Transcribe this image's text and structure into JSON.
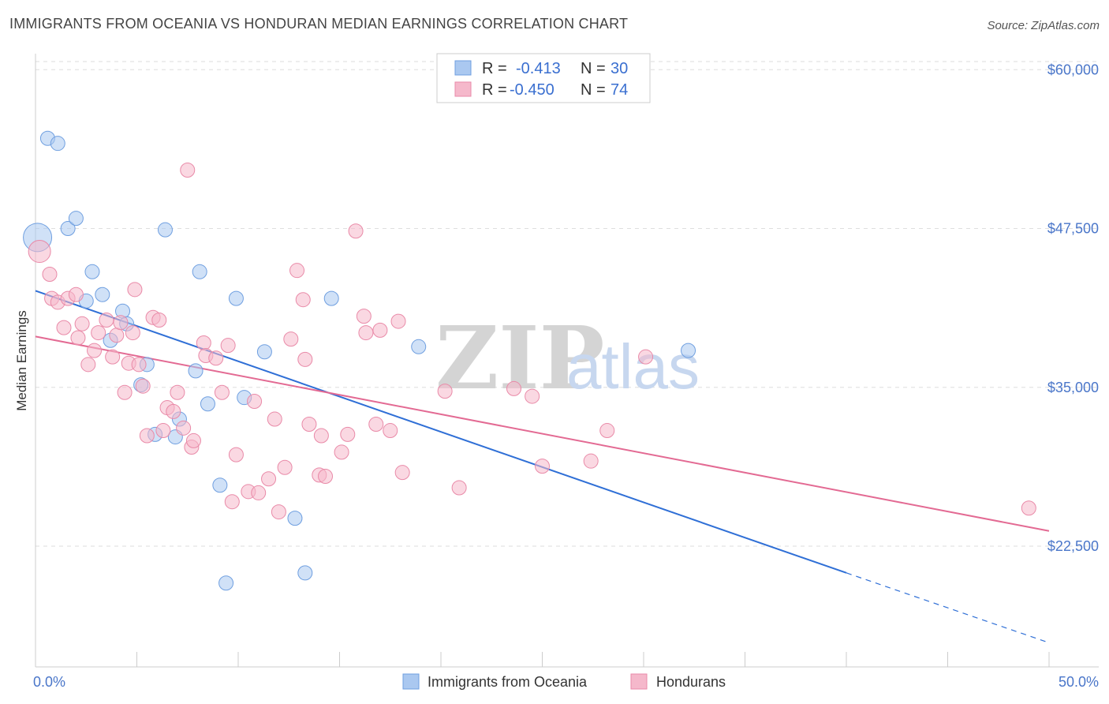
{
  "title": "IMMIGRANTS FROM OCEANIA VS HONDURAN MEDIAN EARNINGS CORRELATION CHART",
  "source": "Source: ZipAtlas.com",
  "watermark": {
    "zip": "ZIP",
    "atlas": "atlas"
  },
  "legend": {
    "rows": [
      {
        "r_label": "R =",
        "r_value": "-0.413",
        "n_label": "N =",
        "n_value": "30",
        "color": "#aac8f0"
      },
      {
        "r_label": "R =",
        "r_value": "-0.450",
        "n_label": "N =",
        "n_value": "74",
        "color": "#f5b8cb"
      }
    ]
  },
  "bottom_legend": [
    {
      "label": "Immigrants from Oceania",
      "color": "#aac8f0"
    },
    {
      "label": "Hondurans",
      "color": "#f5b8cb"
    }
  ],
  "chart_data": {
    "type": "scatter",
    "ylabel": "Median Earnings",
    "xlim": [
      0,
      50
    ],
    "ylim": [
      13000,
      63000
    ],
    "x_tick_labels": [
      {
        "x": 0,
        "label": "0.0%"
      },
      {
        "x": 50,
        "label": "50.0%"
      }
    ],
    "y_ticks": [
      {
        "y": 22500,
        "label": "$22,500"
      },
      {
        "y": 35000,
        "label": "$35,000"
      },
      {
        "y": 47500,
        "label": "$47,500"
      },
      {
        "y": 60000,
        "label": "$60,000"
      }
    ],
    "grid": true,
    "series": [
      {
        "name": "Immigrants from Oceania",
        "color": "#aac8f0",
        "stroke": "#6f9fe0",
        "line_color": "#2f6fd6",
        "trend": {
          "x0": 0,
          "y0": 42600,
          "x1": 40,
          "y1": 20400,
          "dash_to_x": 50,
          "dash_to_y": 14900
        },
        "points": [
          [
            0.1,
            46800
          ],
          [
            0.6,
            54600
          ],
          [
            1.1,
            54200
          ],
          [
            1.6,
            47500
          ],
          [
            2.0,
            48300
          ],
          [
            2.8,
            44100
          ],
          [
            2.5,
            41800
          ],
          [
            3.3,
            42300
          ],
          [
            3.7,
            38700
          ],
          [
            4.3,
            41000
          ],
          [
            4.5,
            40000
          ],
          [
            5.2,
            35200
          ],
          [
            5.5,
            36800
          ],
          [
            5.9,
            31300
          ],
          [
            6.4,
            47400
          ],
          [
            6.9,
            31100
          ],
          [
            7.1,
            32500
          ],
          [
            7.9,
            36300
          ],
          [
            8.1,
            44100
          ],
          [
            8.5,
            33700
          ],
          [
            9.1,
            27300
          ],
          [
            9.4,
            19600
          ],
          [
            9.9,
            42000
          ],
          [
            10.3,
            34200
          ],
          [
            11.3,
            37800
          ],
          [
            12.8,
            24700
          ],
          [
            13.3,
            20400
          ],
          [
            14.6,
            42000
          ],
          [
            18.9,
            38200
          ],
          [
            32.2,
            37900
          ]
        ]
      },
      {
        "name": "Hondurans",
        "color": "#f5b8cb",
        "stroke": "#e98aa8",
        "line_color": "#e36a93",
        "trend": {
          "x0": 0,
          "y0": 39000,
          "x1": 50,
          "y1": 23700
        },
        "points": [
          [
            0.2,
            45700
          ],
          [
            0.7,
            43900
          ],
          [
            0.8,
            42000
          ],
          [
            1.1,
            41700
          ],
          [
            1.4,
            39700
          ],
          [
            1.6,
            42000
          ],
          [
            2.0,
            42300
          ],
          [
            2.1,
            38900
          ],
          [
            2.3,
            40000
          ],
          [
            2.6,
            36800
          ],
          [
            2.9,
            37900
          ],
          [
            3.1,
            39300
          ],
          [
            3.5,
            40300
          ],
          [
            3.8,
            37400
          ],
          [
            4.0,
            39100
          ],
          [
            4.2,
            40100
          ],
          [
            4.4,
            34600
          ],
          [
            4.6,
            36900
          ],
          [
            4.8,
            39300
          ],
          [
            4.9,
            42700
          ],
          [
            5.1,
            36800
          ],
          [
            5.3,
            35100
          ],
          [
            5.5,
            31200
          ],
          [
            5.8,
            40500
          ],
          [
            6.1,
            40300
          ],
          [
            6.3,
            31600
          ],
          [
            6.5,
            33400
          ],
          [
            6.8,
            33100
          ],
          [
            7.0,
            34600
          ],
          [
            7.3,
            31800
          ],
          [
            7.5,
            52100
          ],
          [
            7.7,
            30300
          ],
          [
            7.8,
            30800
          ],
          [
            8.3,
            38500
          ],
          [
            8.4,
            37500
          ],
          [
            8.9,
            37300
          ],
          [
            9.2,
            34600
          ],
          [
            9.5,
            38300
          ],
          [
            9.7,
            26000
          ],
          [
            9.9,
            29700
          ],
          [
            10.5,
            26800
          ],
          [
            10.8,
            33900
          ],
          [
            11.0,
            26700
          ],
          [
            11.5,
            27800
          ],
          [
            11.8,
            32500
          ],
          [
            12.0,
            25200
          ],
          [
            12.3,
            28700
          ],
          [
            12.6,
            38800
          ],
          [
            12.9,
            44200
          ],
          [
            13.2,
            41900
          ],
          [
            13.3,
            37200
          ],
          [
            13.5,
            32100
          ],
          [
            14.0,
            28100
          ],
          [
            14.1,
            31200
          ],
          [
            14.3,
            28000
          ],
          [
            15.1,
            29900
          ],
          [
            15.4,
            31300
          ],
          [
            15.8,
            47300
          ],
          [
            16.2,
            40600
          ],
          [
            16.3,
            39300
          ],
          [
            16.8,
            32100
          ],
          [
            17.0,
            39500
          ],
          [
            17.5,
            31600
          ],
          [
            17.9,
            40200
          ],
          [
            18.1,
            28300
          ],
          [
            20.2,
            34700
          ],
          [
            20.9,
            27100
          ],
          [
            23.6,
            34900
          ],
          [
            24.5,
            34300
          ],
          [
            25.0,
            28800
          ],
          [
            27.4,
            29200
          ],
          [
            28.2,
            31600
          ],
          [
            30.1,
            37400
          ],
          [
            49.0,
            25500
          ]
        ]
      }
    ]
  }
}
